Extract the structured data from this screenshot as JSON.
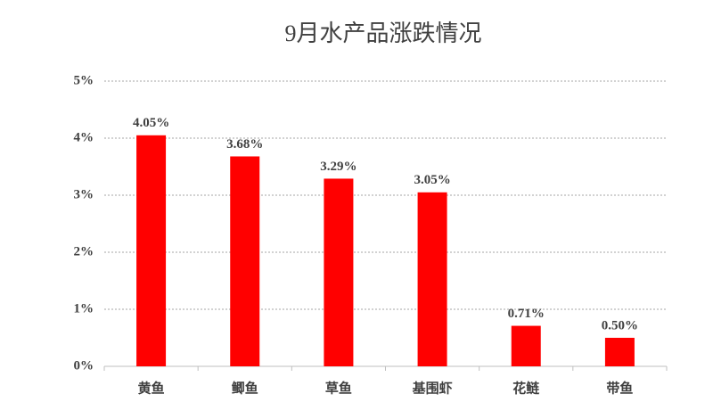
{
  "chart_data": {
    "type": "bar",
    "title": "9月水产品涨跌情况",
    "categories": [
      "黄鱼",
      "鲫鱼",
      "草鱼",
      "基围虾",
      "花鲢",
      "带鱼"
    ],
    "values": [
      4.05,
      3.68,
      3.29,
      3.05,
      0.71,
      0.5
    ],
    "value_labels": [
      "4.05%",
      "3.68%",
      "3.29%",
      "3.05%",
      "0.71%",
      "0.50%"
    ],
    "color": "#ff0000",
    "ylim": [
      0,
      5
    ],
    "yticks": [
      {
        "value": 0,
        "label": "0%"
      },
      {
        "value": 1,
        "label": "1%"
      },
      {
        "value": 2,
        "label": "2%"
      },
      {
        "value": 3,
        "label": "3%"
      },
      {
        "value": 4,
        "label": "4%"
      },
      {
        "value": 5,
        "label": "5%"
      }
    ],
    "grid": true
  }
}
